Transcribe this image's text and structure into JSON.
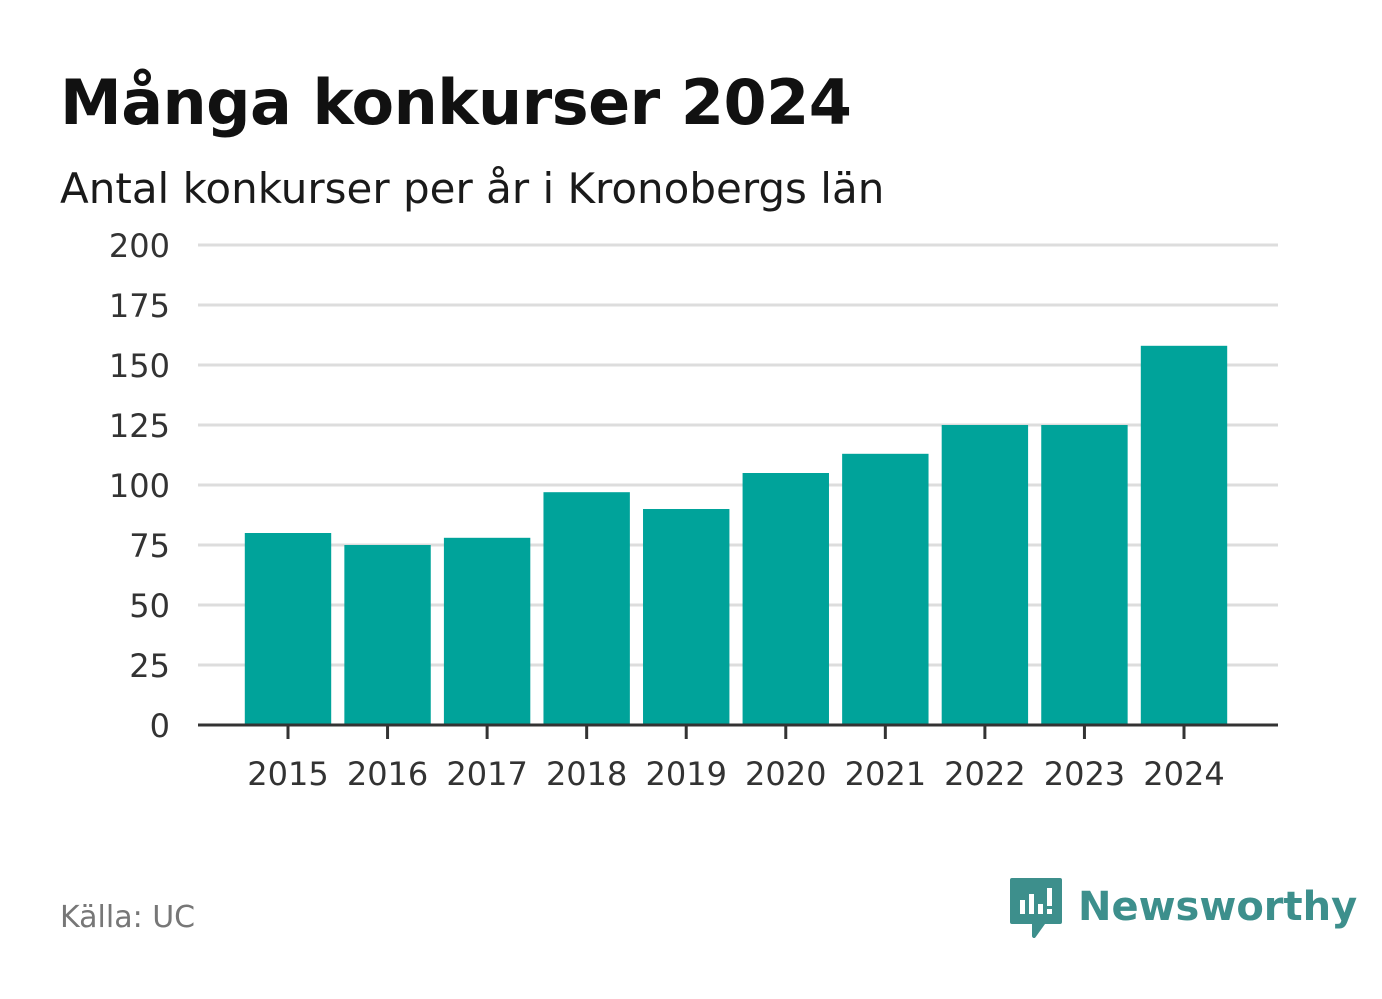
{
  "title": "Många konkurser 2024",
  "subtitle": "Antal konkurser per år i Kronobergs län",
  "source": "Källa: UC",
  "brand": {
    "name": "Newsworthy",
    "icon": "newsworthy-logo-icon",
    "color": "#3d8f8c"
  },
  "colors": {
    "bar": "#00a39a",
    "grid": "#dddddd",
    "axis": "#333333",
    "text": "#333333"
  },
  "chart_data": {
    "type": "bar",
    "categories": [
      "2015",
      "2016",
      "2017",
      "2018",
      "2019",
      "2020",
      "2021",
      "2022",
      "2023",
      "2024"
    ],
    "values": [
      80,
      75,
      78,
      97,
      90,
      105,
      113,
      125,
      125,
      158
    ],
    "ylim": [
      0,
      200
    ],
    "yticks": [
      0,
      25,
      50,
      75,
      100,
      125,
      150,
      175,
      200
    ],
    "ytick_labels": [
      "0",
      "25",
      "50",
      "75",
      "100",
      "125",
      "150",
      "175",
      "200"
    ],
    "grid": true,
    "legend": "none"
  }
}
